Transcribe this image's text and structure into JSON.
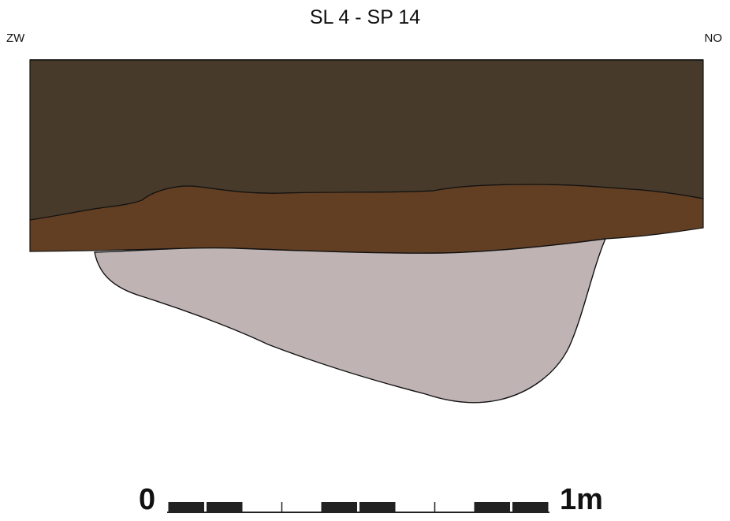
{
  "title": "SL 4 - SP 14",
  "orientation": {
    "left": "ZW",
    "right": "NO"
  },
  "layers": [
    {
      "name": "upper-layer",
      "color": "#473a2a"
    },
    {
      "name": "middle-layer",
      "color": "#623f23"
    },
    {
      "name": "pit-fill",
      "color": "#bfb3b4"
    }
  ],
  "outline_color": "#111111",
  "scale_bar": {
    "start_label": "0",
    "end_label": "1m",
    "segments": 10,
    "filled_segments": [
      0,
      1,
      4,
      5,
      8,
      9
    ],
    "color": "#222222"
  }
}
